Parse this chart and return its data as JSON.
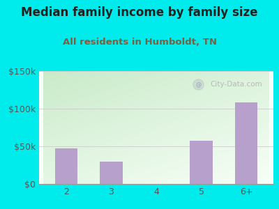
{
  "title": "Median family income by family size",
  "subtitle": "All residents in Humboldt, TN",
  "categories": [
    "2",
    "3",
    "4",
    "5",
    "6+"
  ],
  "values": [
    47000,
    30000,
    0,
    57000,
    108000
  ],
  "bar_color": "#b8a0cc",
  "ylim": [
    0,
    150000
  ],
  "yticks": [
    0,
    50000,
    100000,
    150000
  ],
  "ytick_labels": [
    "$0",
    "$50k",
    "$100k",
    "$150k"
  ],
  "bg_outer": "#00ecec",
  "plot_bg_tl": "#c8e8c8",
  "plot_bg_br": "#f8fff8",
  "title_color": "#222222",
  "subtitle_color": "#7a6040",
  "tick_color": "#555555",
  "grid_color": "#cccccc",
  "watermark_text": "City-Data.com",
  "title_fontsize": 12,
  "subtitle_fontsize": 9.5
}
